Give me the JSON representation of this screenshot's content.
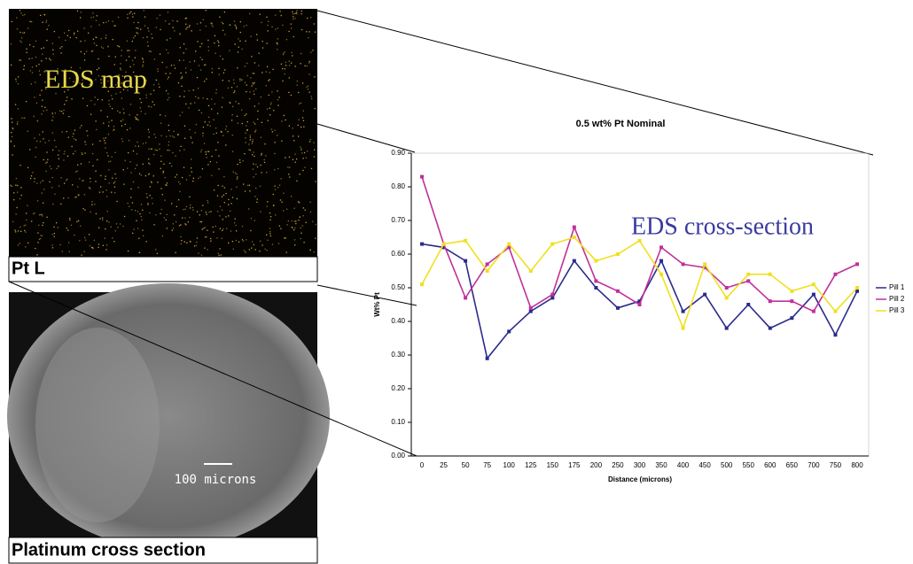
{
  "panels": {
    "eds_map_label": "EDS map",
    "eds_panel_caption": "Pt L",
    "scale_bar_label": "100 microns",
    "sem_panel_caption": "Platinum cross section"
  },
  "chart_data": {
    "type": "line",
    "title": "0.5 wt% Pt Nominal",
    "x_label": "Distance (microns)",
    "y_label": "Wt% Pt",
    "annotation": "EDS cross-section",
    "categories": [
      "0",
      "25",
      "50",
      "75",
      "100",
      "125",
      "150",
      "175",
      "200",
      "250",
      "300",
      "350",
      "400",
      "450",
      "500",
      "550",
      "600",
      "650",
      "700",
      "750",
      "800"
    ],
    "series": [
      {
        "name": "Pill 1",
        "color": "#2b2b8c",
        "values": [
          0.63,
          0.62,
          0.58,
          0.29,
          0.37,
          0.43,
          0.47,
          0.58,
          0.5,
          0.44,
          0.46,
          0.58,
          0.43,
          0.48,
          0.38,
          0.45,
          0.38,
          0.41,
          0.48,
          0.36,
          0.49
        ]
      },
      {
        "name": "Pill 2",
        "color": "#c0309a",
        "values": [
          0.83,
          0.63,
          0.47,
          0.57,
          0.62,
          0.44,
          0.48,
          0.68,
          0.52,
          0.49,
          0.45,
          0.62,
          0.57,
          0.56,
          0.5,
          0.52,
          0.46,
          0.46,
          0.43,
          0.54,
          0.57
        ]
      },
      {
        "name": "Pill 3",
        "color": "#f0e020",
        "values": [
          0.51,
          0.63,
          0.64,
          0.55,
          0.63,
          0.55,
          0.63,
          0.65,
          0.58,
          0.6,
          0.64,
          0.54,
          0.38,
          0.57,
          0.47,
          0.54,
          0.54,
          0.49,
          0.51,
          0.43,
          0.5
        ]
      }
    ],
    "ylim": [
      0,
      0.9
    ],
    "yticks": [
      {
        "value": 0,
        "label": "0.00"
      },
      {
        "value": 0.1,
        "label": "0.10"
      },
      {
        "value": 0.2,
        "label": "0.20"
      },
      {
        "value": 0.3,
        "label": "0.30"
      },
      {
        "value": 0.4,
        "label": "0.40"
      },
      {
        "value": 0.5,
        "label": "0.50"
      },
      {
        "value": 0.6,
        "label": "0.60"
      },
      {
        "value": 0.7,
        "label": "0.70"
      },
      {
        "value": 0.8,
        "label": "0.80"
      },
      {
        "value": 0.9,
        "label": "0.90"
      }
    ],
    "legend": "right"
  }
}
